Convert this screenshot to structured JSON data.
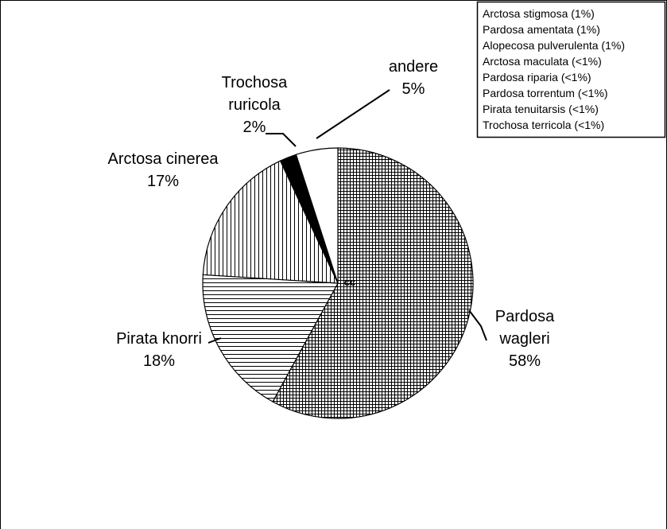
{
  "chart_data": {
    "type": "pie",
    "categories": [
      "Pardosa wagleri",
      "Pirata knorri",
      "Arctosa cinerea",
      "Trochosa ruricola",
      "andere"
    ],
    "values": [
      58,
      18,
      17,
      2,
      5
    ],
    "value_labels": [
      "58%",
      "18%",
      "17%",
      "2%",
      "5%"
    ],
    "colors": [
      "#000000",
      "#000000",
      "#000000",
      "#000000",
      "#ffffff"
    ],
    "patterns": [
      "grid",
      "horizontal",
      "vertical",
      "solid",
      "none"
    ],
    "center_label": "cc",
    "legend_notes": [
      "Arctosa stigmosa (1%)",
      "Pardosa amentata (1%)",
      "Alopecosa pulverulenta (1%)",
      "Arctosa maculata (<1%)",
      "Pardosa riparia (<1%)",
      "Pardosa torrentum (<1%)",
      "Pirata tenuitarsis (<1%)",
      "Trochosa terricola (<1%)"
    ]
  }
}
